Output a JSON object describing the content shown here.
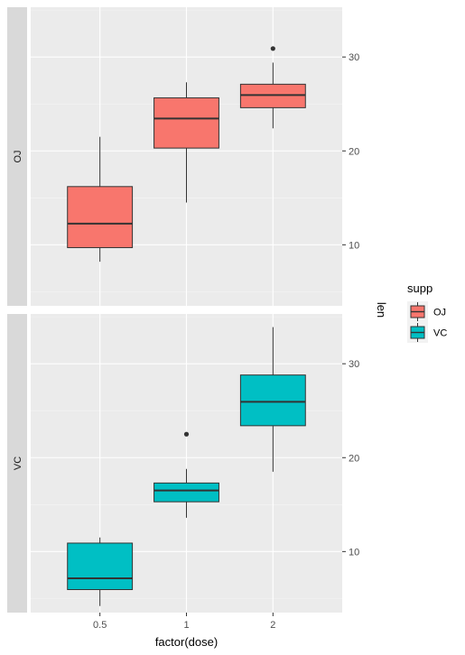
{
  "chart_data": {
    "type": "boxplot",
    "xlabel": "factor(dose)",
    "ylabel": "len",
    "categories": [
      "0.5",
      "1",
      "2"
    ],
    "ylim": [
      3.5,
      35.3
    ],
    "yticks": [
      10,
      20,
      30
    ],
    "grid": true,
    "facets": [
      {
        "label": "OJ",
        "color": "#F8766D",
        "boxes": [
          {
            "x": "0.5",
            "min": 8.2,
            "q1": 9.7,
            "median": 12.25,
            "q3": 16.2,
            "max": 21.5,
            "outliers": []
          },
          {
            "x": "1",
            "min": 14.5,
            "q1": 20.3,
            "median": 23.45,
            "q3": 25.65,
            "max": 27.3,
            "outliers": []
          },
          {
            "x": "2",
            "min": 22.4,
            "q1": 24.6,
            "median": 25.95,
            "q3": 27.1,
            "max": 29.4,
            "outliers": [
              30.9
            ]
          }
        ]
      },
      {
        "label": "VC",
        "color": "#00BFC4",
        "boxes": [
          {
            "x": "0.5",
            "min": 4.2,
            "q1": 5.95,
            "median": 7.15,
            "q3": 10.9,
            "max": 11.5,
            "outliers": []
          },
          {
            "x": "1",
            "min": 13.6,
            "q1": 15.3,
            "median": 16.5,
            "q3": 17.3,
            "max": 18.8,
            "outliers": [
              22.5
            ]
          },
          {
            "x": "2",
            "min": 18.5,
            "q1": 23.4,
            "median": 25.95,
            "q3": 28.8,
            "max": 33.9,
            "outliers": []
          }
        ]
      }
    ],
    "legend": {
      "title": "supp",
      "placement": "right",
      "items": [
        {
          "label": "OJ",
          "color": "#F8766D"
        },
        {
          "label": "VC",
          "color": "#00BFC4"
        }
      ]
    }
  }
}
